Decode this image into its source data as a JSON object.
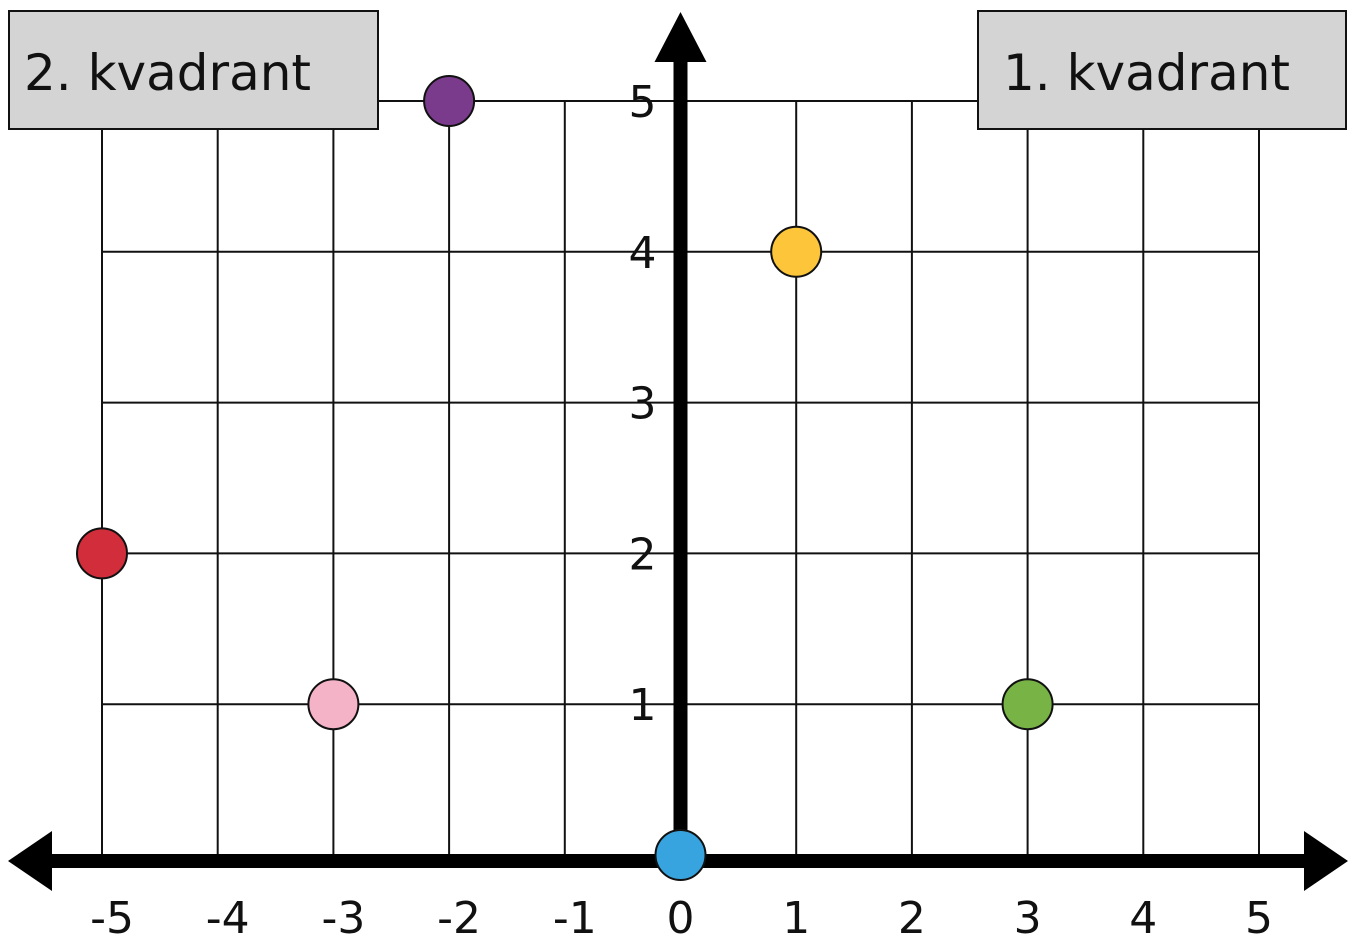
{
  "quadrant_labels": {
    "second": "2.  kvadrant",
    "first": "1.  kvadrant"
  },
  "chart_data": {
    "type": "scatter",
    "xlim": [
      -5,
      5
    ],
    "ylim": [
      0,
      5
    ],
    "grid": true,
    "x_ticks": [
      "-5",
      "-4",
      "-3",
      "-2",
      "-1",
      "0",
      "1",
      "2",
      "3",
      "4",
      "5"
    ],
    "y_ticks": [
      "1",
      "2",
      "3",
      "4",
      "5"
    ],
    "points": [
      {
        "x": -2,
        "y": 5,
        "color": "#7b3b8c"
      },
      {
        "x": 1,
        "y": 4,
        "color": "#fcc53a"
      },
      {
        "x": -5,
        "y": 2,
        "color": "#d12d3a"
      },
      {
        "x": -3,
        "y": 1,
        "color": "#f5b3c8"
      },
      {
        "x": 3,
        "y": 1,
        "color": "#78b346"
      },
      {
        "x": 0,
        "y": 0,
        "color": "#38a4df"
      }
    ]
  },
  "colors": {
    "grid": "#111111",
    "axis": "#000000",
    "label_box": "#d4d4d4"
  }
}
